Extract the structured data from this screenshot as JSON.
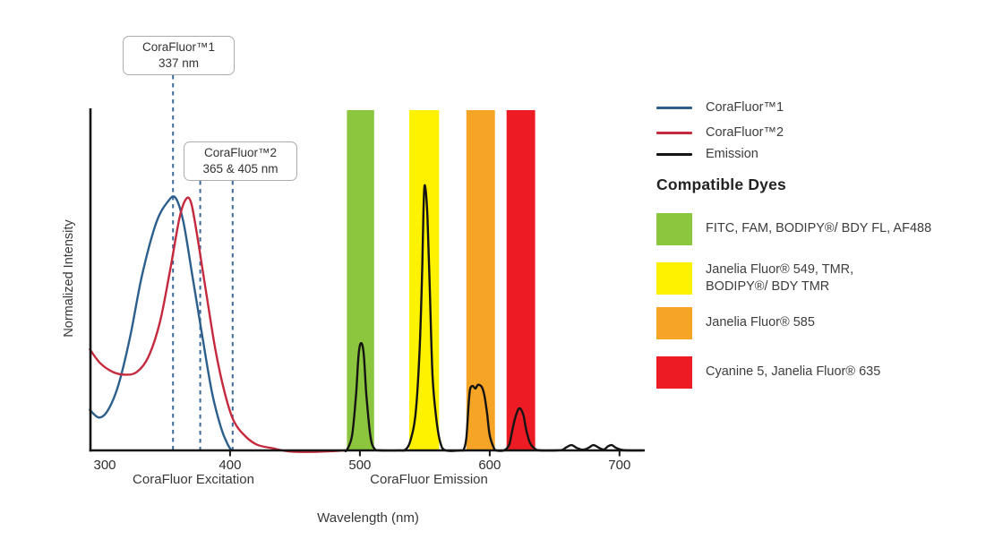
{
  "chart": {
    "y_axis_label": "Normalized Intensity",
    "x_axis_label": "Wavelength (nm)",
    "excitation_section_label": "CoraFluor Excitation",
    "emission_section_label": "CoraFluor Emission",
    "callouts": [
      {
        "line1": "CoraFluor™1",
        "line2": "337 nm",
        "markers_nm": [
          356
        ]
      },
      {
        "line1": "CoraFluor™2",
        "line2": "365 & 405 nm",
        "markers_nm": [
          377,
          402
        ]
      }
    ]
  },
  "legend": {
    "items": [
      {
        "label": "CoraFluor™1",
        "color": "#2d5f8c"
      },
      {
        "label": "CoraFluor™2",
        "color": "#c5293d"
      },
      {
        "label": "Emission",
        "color": "#141414"
      }
    ],
    "dyes_heading": "Compatible Dyes",
    "dyes": [
      {
        "label": "FITC, FAM, BODIPY®/ BDY FL, AF488",
        "color": "#8cc63e"
      },
      {
        "label": "Janelia Fluor® 549, TMR,\nBODIPY®/ BDY TMR",
        "color": "#fff200"
      },
      {
        "label": "Janelia Fluor® 585",
        "color": "#f6a426"
      },
      {
        "label": "Cyanine 5, Janelia Fluor® 635",
        "color": "#ed1c24"
      }
    ]
  },
  "chart_data": {
    "type": "line",
    "title": "",
    "xlabel": "Wavelength (nm)",
    "ylabel": "Normalized Intensity",
    "xlim": [
      292,
      719
    ],
    "ylim": [
      0,
      1.06
    ],
    "grid": false,
    "legend_position": "right",
    "x_ticks_nm": [
      300,
      400,
      500,
      600,
      700
    ],
    "marker_line_color": "#3c6a96",
    "marker_lines_labeled_nm": [
      337,
      365,
      405
    ],
    "emission_bands_nm": [
      {
        "label": "FITC, FAM, BODIPY®/ BDY FL, AF488",
        "color": "#8cc63e",
        "from_nm": 490,
        "to_nm": 511
      },
      {
        "label": "Janelia Fluor® 549, TMR, BODIPY®/ BDY TMR",
        "color": "#fff200",
        "from_nm": 538,
        "to_nm": 561
      },
      {
        "label": "Janelia Fluor® 585",
        "color": "#f6a426",
        "from_nm": 582,
        "to_nm": 604
      },
      {
        "label": "Cyanine 5, Janelia Fluor® 635",
        "color": "#ed1c24",
        "from_nm": 613,
        "to_nm": 635
      }
    ],
    "series": [
      {
        "name": "CoraFluor™1",
        "color": "#2d5f8c",
        "points": [
          [
            292,
            0.16
          ],
          [
            299,
            0.13
          ],
          [
            306,
            0.16
          ],
          [
            314,
            0.26
          ],
          [
            323,
            0.45
          ],
          [
            332,
            0.69
          ],
          [
            343,
            0.9
          ],
          [
            352,
            0.985
          ],
          [
            358,
            1.0
          ],
          [
            364,
            0.905
          ],
          [
            371,
            0.69
          ],
          [
            379,
            0.44
          ],
          [
            386,
            0.23
          ],
          [
            393,
            0.09
          ],
          [
            398,
            0.025
          ],
          [
            401,
            0
          ]
        ]
      },
      {
        "name": "CoraFluor™2",
        "color": "#c5293d",
        "points": [
          [
            292,
            0.4
          ],
          [
            300,
            0.345
          ],
          [
            310,
            0.31
          ],
          [
            319,
            0.3
          ],
          [
            328,
            0.31
          ],
          [
            337,
            0.37
          ],
          [
            346,
            0.51
          ],
          [
            354,
            0.72
          ],
          [
            361,
            0.92
          ],
          [
            366,
            0.995
          ],
          [
            370,
            0.98
          ],
          [
            375,
            0.84
          ],
          [
            382,
            0.61
          ],
          [
            389,
            0.39
          ],
          [
            396,
            0.225
          ],
          [
            403,
            0.115
          ],
          [
            412,
            0.055
          ],
          [
            421,
            0.022
          ],
          [
            433,
            0.008
          ],
          [
            445,
            -0.004
          ],
          [
            460,
            -0.006
          ],
          [
            475,
            -0.004
          ],
          [
            488,
            0
          ]
        ]
      },
      {
        "name": "Emission",
        "color": "#141414",
        "points": [
          [
            488,
            0
          ],
          [
            490,
            0.002
          ],
          [
            494,
            0.06
          ],
          [
            497,
            0.22
          ],
          [
            499,
            0.38
          ],
          [
            501,
            0.425
          ],
          [
            503,
            0.38
          ],
          [
            505,
            0.22
          ],
          [
            508,
            0.06
          ],
          [
            511,
            0.008
          ],
          [
            516,
            0
          ],
          [
            530,
            0
          ],
          [
            535,
            0.003
          ],
          [
            539,
            0.04
          ],
          [
            543,
            0.15
          ],
          [
            546,
            0.4
          ],
          [
            548,
            0.72
          ],
          [
            549,
            0.95
          ],
          [
            550,
            1.05
          ],
          [
            552,
            0.93
          ],
          [
            554,
            0.61
          ],
          [
            556,
            0.29
          ],
          [
            559,
            0.12
          ],
          [
            562,
            0.03
          ],
          [
            566,
            0
          ],
          [
            578,
            0
          ],
          [
            580,
            0.004
          ],
          [
            582,
            0.05
          ],
          [
            584,
            0.2
          ],
          [
            585,
            0.245
          ],
          [
            587,
            0.255
          ],
          [
            589,
            0.245
          ],
          [
            591,
            0.26
          ],
          [
            594,
            0.25
          ],
          [
            596,
            0.215
          ],
          [
            598,
            0.145
          ],
          [
            600,
            0.06
          ],
          [
            603,
            0.012
          ],
          [
            605,
            0
          ],
          [
            611,
            0
          ],
          [
            615,
            0.022
          ],
          [
            617,
            0.07
          ],
          [
            620,
            0.135
          ],
          [
            623,
            0.167
          ],
          [
            626,
            0.14
          ],
          [
            628,
            0.085
          ],
          [
            631,
            0.03
          ],
          [
            635,
            0.006
          ],
          [
            639,
            0
          ],
          [
            651,
            0
          ],
          [
            656,
            0.002
          ],
          [
            659,
            0.012
          ],
          [
            663,
            0.021
          ],
          [
            667,
            0.01
          ],
          [
            671,
            0.003
          ],
          [
            674,
            0.005
          ],
          [
            677,
            0.013
          ],
          [
            680,
            0.021
          ],
          [
            684,
            0.011
          ],
          [
            687,
            0.004
          ],
          [
            689,
            0.006
          ],
          [
            691,
            0.016
          ],
          [
            694,
            0.021
          ],
          [
            697,
            0.011
          ],
          [
            701,
            0.003
          ],
          [
            706,
            0
          ],
          [
            718,
            0
          ]
        ]
      }
    ]
  }
}
